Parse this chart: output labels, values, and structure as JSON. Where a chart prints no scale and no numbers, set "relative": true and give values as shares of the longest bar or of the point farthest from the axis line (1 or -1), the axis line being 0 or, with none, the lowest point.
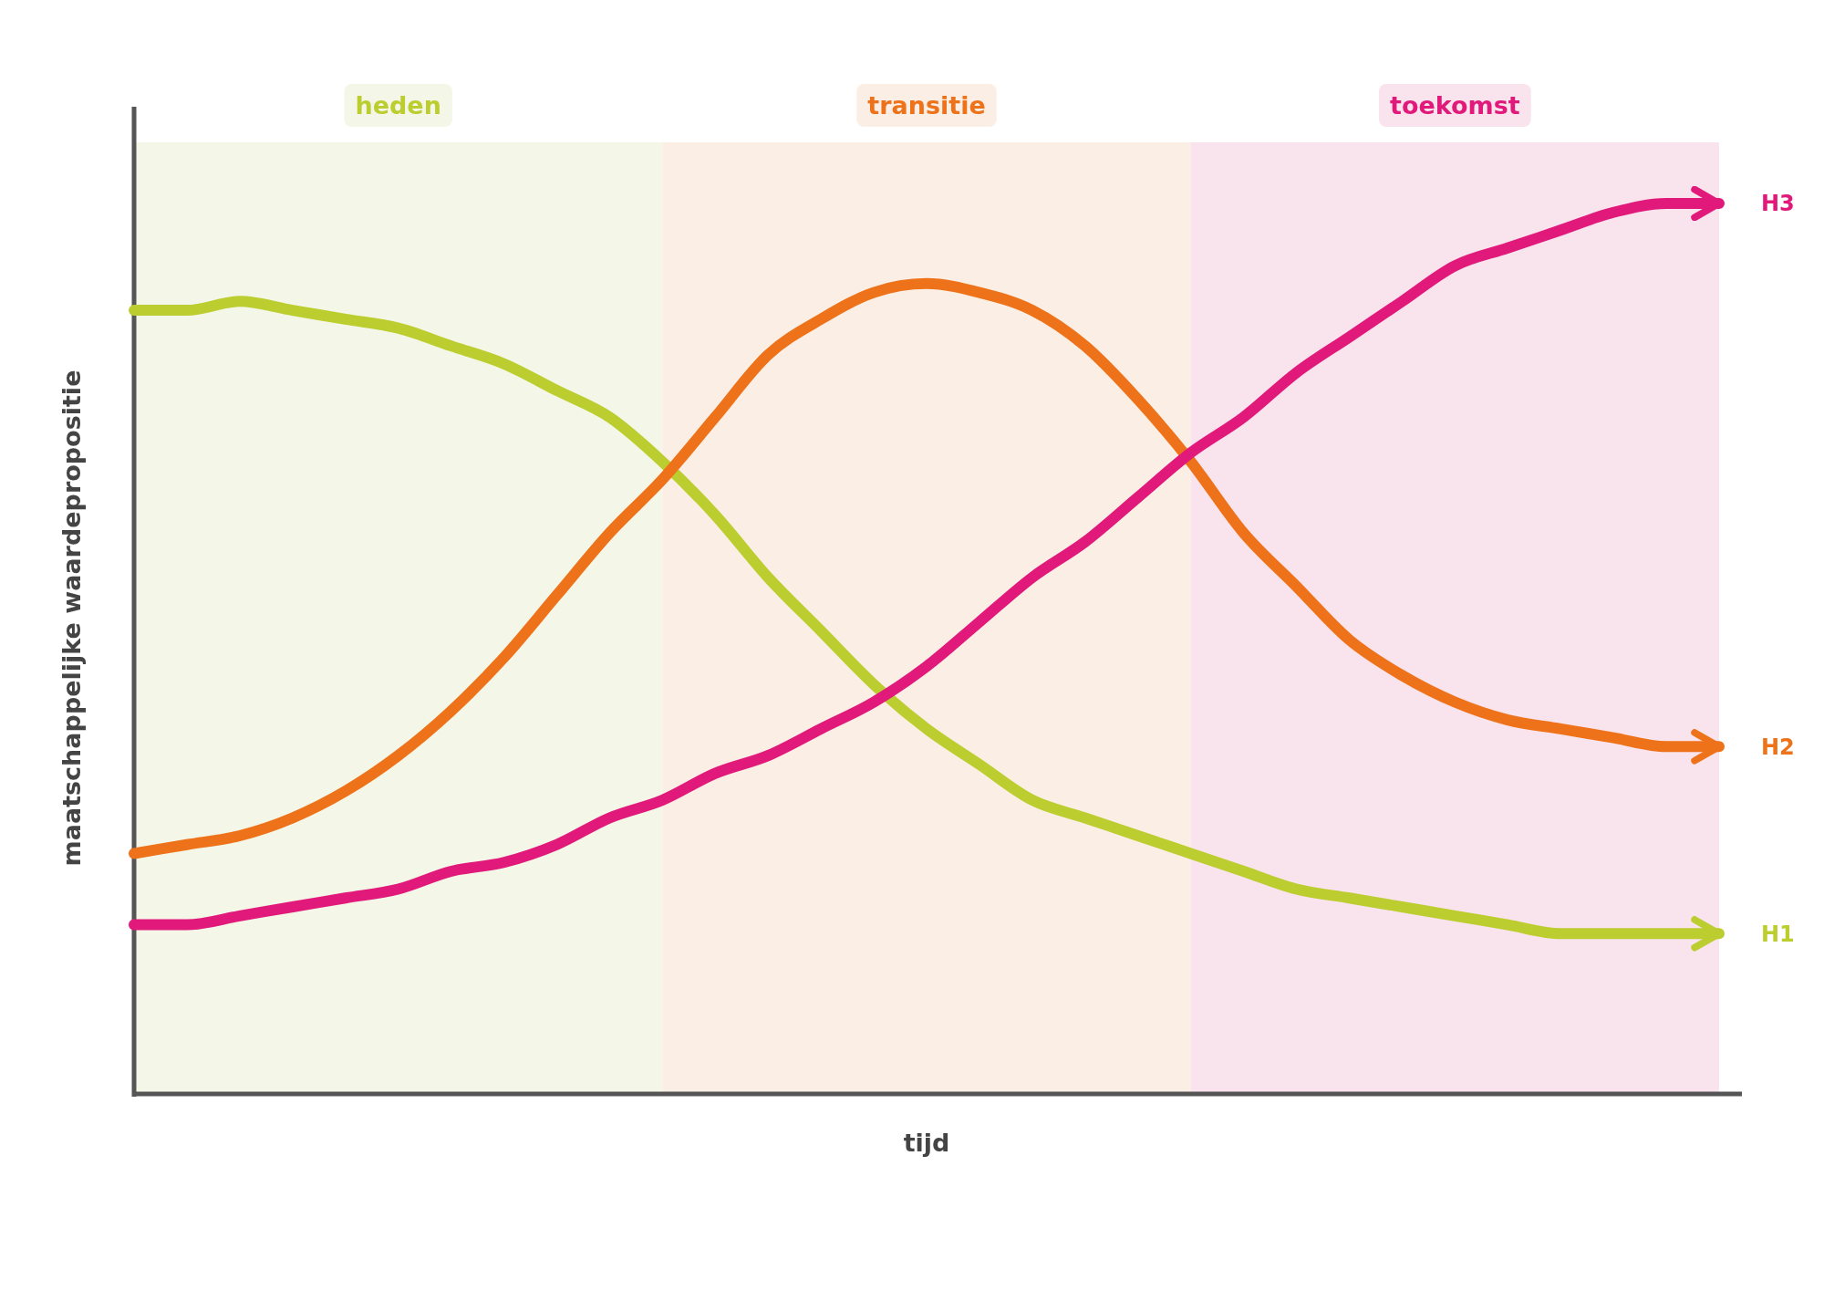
{
  "chart_data": {
    "type": "line",
    "relative": true,
    "xlabel": "tijd",
    "ylabel": "maatschappelijke waardepropositie",
    "categories": [
      null,
      null,
      null,
      null,
      null,
      null,
      null,
      null,
      null,
      null,
      null,
      null,
      null,
      null,
      null,
      null,
      null,
      null,
      null,
      null,
      null,
      null,
      null,
      null,
      null,
      null,
      null,
      null,
      null,
      null,
      null
    ],
    "series": [
      {
        "name": "H1",
        "color": "#bccd2f",
        "values": [
          0.88,
          0.88,
          0.89,
          0.88,
          0.87,
          0.86,
          0.84,
          0.82,
          0.79,
          0.76,
          0.71,
          0.65,
          0.58,
          0.52,
          0.46,
          0.41,
          0.37,
          0.33,
          0.31,
          0.29,
          0.27,
          0.25,
          0.23,
          0.22,
          0.21,
          0.2,
          0.19,
          0.18,
          0.18,
          0.18,
          0.18
        ]
      },
      {
        "name": "H2",
        "color": "#ee7219",
        "values": [
          0.27,
          0.28,
          0.29,
          0.31,
          0.34,
          0.38,
          0.43,
          0.49,
          0.56,
          0.63,
          0.69,
          0.76,
          0.83,
          0.87,
          0.9,
          0.91,
          0.9,
          0.88,
          0.84,
          0.78,
          0.71,
          0.63,
          0.57,
          0.51,
          0.47,
          0.44,
          0.42,
          0.41,
          0.4,
          0.39,
          0.39
        ]
      },
      {
        "name": "H3",
        "color": "#e0197a",
        "values": [
          0.19,
          0.19,
          0.2,
          0.21,
          0.22,
          0.23,
          0.25,
          0.26,
          0.28,
          0.31,
          0.33,
          0.36,
          0.38,
          0.41,
          0.44,
          0.48,
          0.53,
          0.58,
          0.62,
          0.67,
          0.72,
          0.76,
          0.81,
          0.85,
          0.89,
          0.93,
          0.95,
          0.97,
          0.99,
          1.0,
          1
        ]
      }
    ],
    "annotations": [
      "heden",
      "transitie",
      "toekomst"
    ]
  }
}
